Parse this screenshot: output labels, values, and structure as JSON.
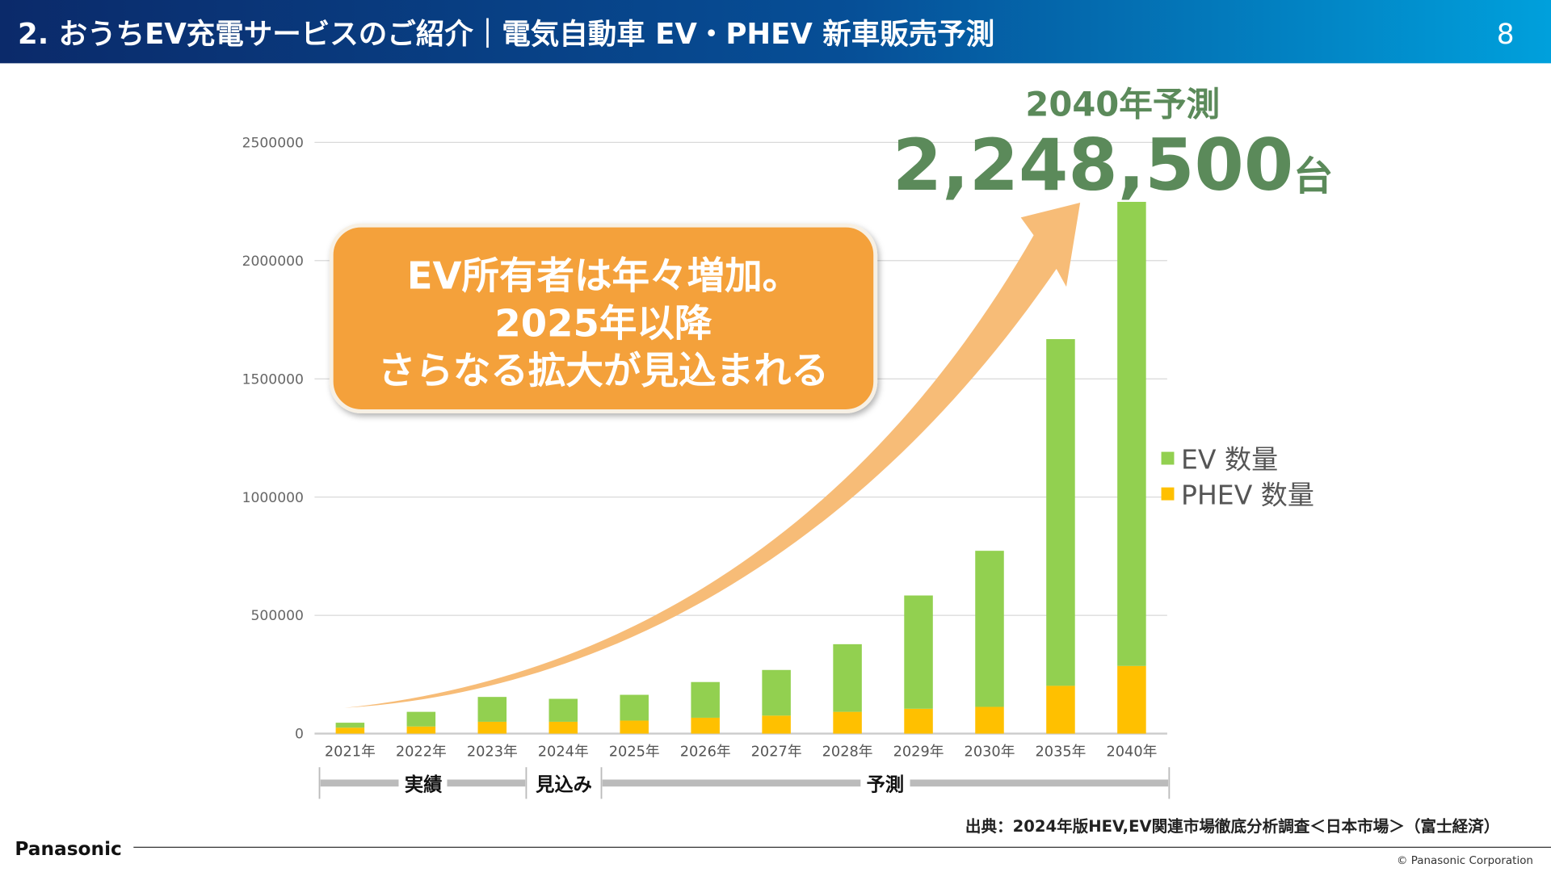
{
  "header": {
    "title": "2. おうちEV充電サービスのご紹介｜電気自動車 EV・PHEV 新車販売予測",
    "page_number": "8",
    "gradient_start": "#0b2a6a",
    "gradient_end": "#00a0dc"
  },
  "headline": {
    "label": "2040年予測",
    "value": "2,248,500",
    "unit": "台",
    "color": "#5b8a5a"
  },
  "callout": {
    "lines": [
      "EV所有者は年々増加。",
      "2025年以降",
      "さらなる拡大が見込まれる"
    ],
    "color": "#f4a13a"
  },
  "periods": [
    {
      "label": "実績"
    },
    {
      "label": "見込み"
    },
    {
      "label": "予測"
    }
  ],
  "source": "出典：2024年版HEV,EV関連市場徹底分析調査＜日本市場＞（富士経済）",
  "footer": {
    "logo": "Panasonic",
    "copyright": "© Panasonic Corporation"
  },
  "chart_data": {
    "type": "bar",
    "stacked": true,
    "categories": [
      "2021年",
      "2022年",
      "2023年",
      "2024年",
      "2025年",
      "2026年",
      "2027年",
      "2028年",
      "2029年",
      "2030年",
      "2035年",
      "2040年"
    ],
    "series": [
      {
        "name": "PHEV 数量",
        "color": "#ffc000",
        "values": [
          25000,
          30000,
          50000,
          50000,
          55000,
          67000,
          76000,
          92000,
          105000,
          113000,
          202000,
          286000
        ]
      },
      {
        "name": "EV 数量",
        "color": "#92d050",
        "values": [
          21000,
          62000,
          105000,
          97000,
          109000,
          151000,
          193000,
          286000,
          479000,
          660000,
          1466000,
          1962500
        ]
      }
    ],
    "ylim": [
      0,
      2500000
    ],
    "yticks": [
      "0",
      "500000",
      "1000000",
      "1500000",
      "2000000",
      "2500000"
    ],
    "grid": true,
    "legend": "right"
  }
}
